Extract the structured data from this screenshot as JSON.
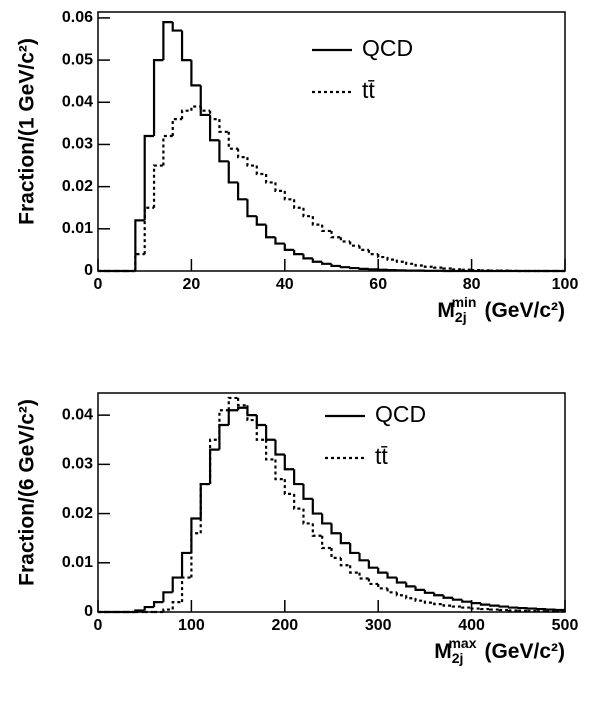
{
  "chart_data": [
    {
      "type": "histogram",
      "y_label": "Fraction/(1 GeV/c²)",
      "x_label": {
        "base": "M",
        "sub": "2j",
        "sup": "min",
        "unit": "(GeV/c²)"
      },
      "xlim": [
        0,
        100
      ],
      "ylim": [
        0,
        0.0614
      ],
      "xticks": [
        0,
        20,
        40,
        60,
        80,
        100
      ],
      "yticks": [
        0,
        0.01,
        0.02,
        0.03,
        0.04,
        0.05,
        0.06
      ],
      "legend": "upper right",
      "bins": [
        0,
        2,
        4,
        6,
        8,
        10,
        12,
        14,
        16,
        18,
        20,
        22,
        24,
        26,
        28,
        30,
        32,
        34,
        36,
        38,
        40,
        42,
        44,
        46,
        48,
        50,
        52,
        54,
        56,
        58,
        60,
        62,
        64,
        66,
        68,
        70,
        72,
        74,
        76,
        78,
        80,
        82,
        84,
        86,
        88,
        90,
        92,
        94,
        96,
        98,
        100
      ],
      "series": [
        {
          "name": "QCD",
          "color": "#000000",
          "dash": "solid",
          "values": [
            0,
            0,
            0,
            0,
            0.012,
            0.032,
            0.05,
            0.059,
            0.057,
            0.05,
            0.044,
            0.037,
            0.031,
            0.026,
            0.021,
            0.017,
            0.013,
            0.011,
            0.008,
            0.0065,
            0.005,
            0.004,
            0.003,
            0.0022,
            0.0017,
            0.0012,
            0.0009,
            0.0007,
            0.0005,
            0.0004,
            0.0003,
            0.0002,
            0.00015,
            0.0001,
            0.0001,
            5e-05,
            5e-05,
            0,
            0,
            0,
            0,
            0,
            0,
            0,
            0,
            0,
            0,
            0,
            0,
            0
          ]
        },
        {
          "name": "tt̄",
          "color": "#000000",
          "dash": "dotted",
          "values": [
            0,
            0,
            0,
            0,
            0.004,
            0.015,
            0.025,
            0.032,
            0.036,
            0.038,
            0.039,
            0.038,
            0.036,
            0.033,
            0.029,
            0.027,
            0.025,
            0.023,
            0.021,
            0.019,
            0.017,
            0.015,
            0.013,
            0.011,
            0.0095,
            0.008,
            0.007,
            0.006,
            0.005,
            0.004,
            0.0033,
            0.0027,
            0.0022,
            0.0017,
            0.0013,
            0.001,
            0.0008,
            0.0006,
            0.0004,
            0.0003,
            0.0002,
            0.00015,
            0.0001,
            0.0001,
            5e-05,
            0,
            0,
            0,
            0,
            0
          ]
        }
      ]
    },
    {
      "type": "histogram",
      "y_label": "Fraction/(6 GeV/c²)",
      "x_label": {
        "base": "M",
        "sub": "2j",
        "sup": "max",
        "unit": "(GeV/c²)"
      },
      "xlim": [
        0,
        500
      ],
      "ylim": [
        0,
        0.0445
      ],
      "xticks": [
        0,
        100,
        200,
        300,
        400,
        500
      ],
      "yticks": [
        0,
        0.01,
        0.02,
        0.03,
        0.04
      ],
      "legend": "upper right",
      "bins": [
        0,
        10,
        20,
        30,
        40,
        50,
        60,
        70,
        80,
        90,
        100,
        110,
        120,
        130,
        140,
        150,
        160,
        170,
        180,
        190,
        200,
        210,
        220,
        230,
        240,
        250,
        260,
        270,
        280,
        290,
        300,
        310,
        320,
        330,
        340,
        350,
        360,
        370,
        380,
        390,
        400,
        410,
        420,
        430,
        440,
        450,
        460,
        470,
        480,
        490,
        500
      ],
      "series": [
        {
          "name": "QCD",
          "color": "#000000",
          "dash": "solid",
          "values": [
            0,
            0,
            0,
            0,
            0.0003,
            0.001,
            0.002,
            0.004,
            0.007,
            0.012,
            0.019,
            0.026,
            0.033,
            0.038,
            0.041,
            0.0415,
            0.04,
            0.038,
            0.035,
            0.032,
            0.029,
            0.026,
            0.023,
            0.02,
            0.018,
            0.016,
            0.014,
            0.012,
            0.0105,
            0.009,
            0.008,
            0.007,
            0.006,
            0.0052,
            0.0045,
            0.0039,
            0.0034,
            0.0029,
            0.0025,
            0.0021,
            0.0018,
            0.0015,
            0.0013,
            0.0011,
            0.0009,
            0.0008,
            0.0007,
            0.0006,
            0.0005,
            0.0004
          ]
        },
        {
          "name": "tt̄",
          "color": "#000000",
          "dash": "dotted",
          "values": [
            0,
            0,
            0,
            0,
            0,
            0,
            0,
            0.0005,
            0.002,
            0.007,
            0.016,
            0.026,
            0.035,
            0.041,
            0.0435,
            0.042,
            0.039,
            0.035,
            0.031,
            0.027,
            0.024,
            0.021,
            0.018,
            0.0155,
            0.013,
            0.011,
            0.0095,
            0.008,
            0.0068,
            0.0057,
            0.0048,
            0.004,
            0.0034,
            0.0028,
            0.0023,
            0.0019,
            0.0016,
            0.0013,
            0.0011,
            0.0009,
            0.0007,
            0.0006,
            0.0005,
            0.0004,
            0.0003,
            0.00025,
            0.0002,
            0.00015,
            0.0001,
            0.0001
          ]
        }
      ]
    }
  ]
}
